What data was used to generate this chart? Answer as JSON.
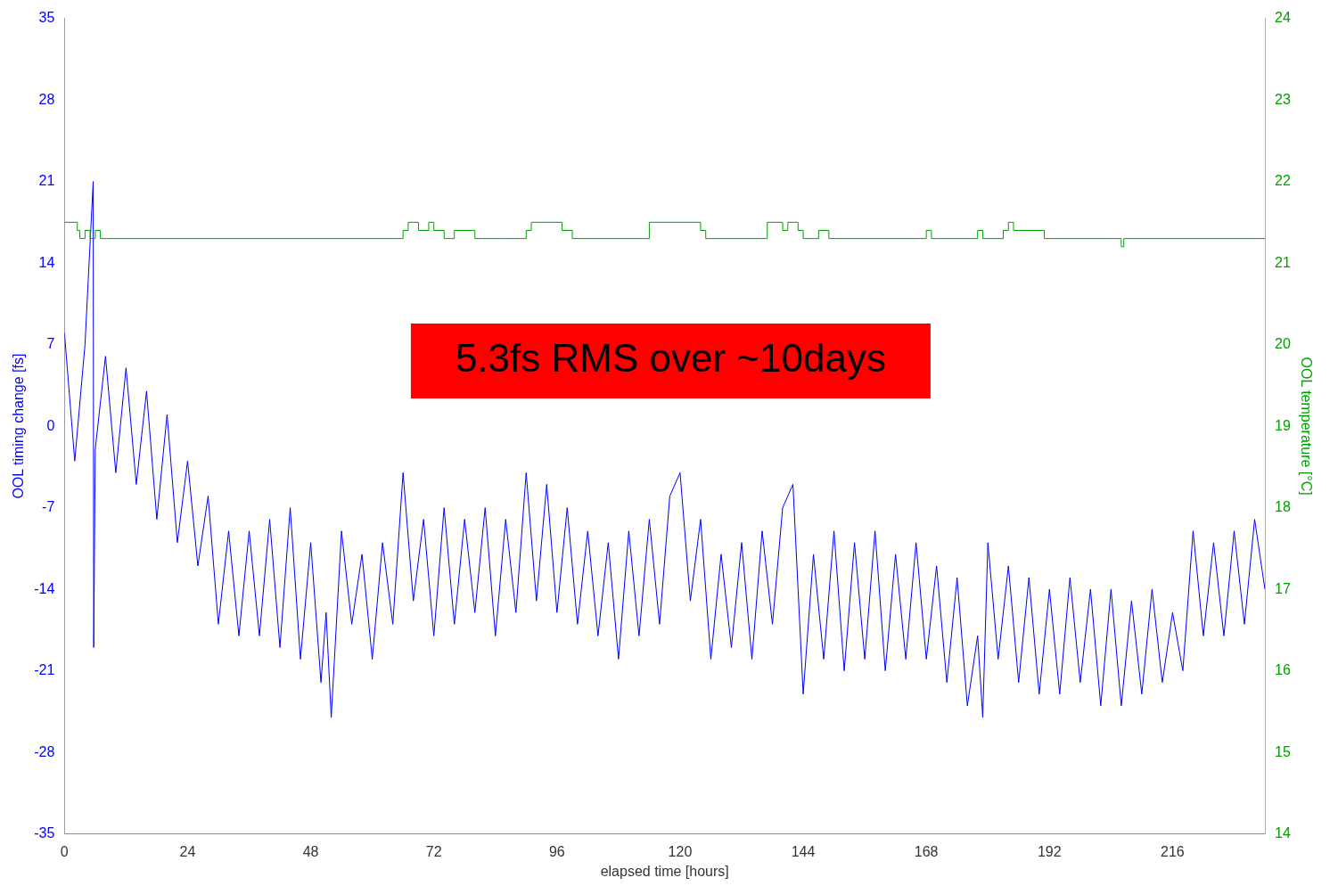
{
  "chart_data": {
    "type": "line",
    "xlabel": "elapsed time [hours]",
    "ylabel": "OOL timing change [fs]",
    "y2label": "OOL temperature [°C]",
    "annotations": [
      "5.3fs RMS over ~10days"
    ],
    "xlim": [
      0,
      234
    ],
    "xticks": [
      0,
      24,
      48,
      72,
      96,
      120,
      144,
      168,
      192,
      216
    ],
    "ylim": [
      -35,
      35
    ],
    "yticks": [
      -35,
      -28,
      -21,
      -14,
      -7,
      0,
      7,
      14,
      21,
      28,
      35
    ],
    "y2lim": [
      14,
      24
    ],
    "y2ticks": [
      14,
      15,
      16,
      17,
      18,
      19,
      20,
      21,
      22,
      23,
      24
    ],
    "grid": false,
    "legend": false,
    "marker": "none",
    "series": [
      {
        "color": "#0000ff",
        "x": [
          0,
          2,
          4,
          5.6,
          5.7,
          6,
          8,
          10,
          12,
          14,
          16,
          18,
          20,
          22,
          24,
          26,
          28,
          30,
          32,
          34,
          36,
          38,
          40,
          42,
          44,
          46,
          48,
          50,
          51,
          52,
          54,
          56,
          58,
          60,
          62,
          64,
          66,
          68,
          70,
          72,
          74,
          76,
          78,
          80,
          82,
          84,
          86,
          88,
          90,
          92,
          94,
          96,
          98,
          100,
          102,
          104,
          106,
          108,
          110,
          112,
          114,
          116,
          118,
          120,
          122,
          124,
          126,
          128,
          130,
          132,
          134,
          136,
          138,
          140,
          142,
          143,
          144,
          146,
          148,
          150,
          152,
          154,
          156,
          158,
          160,
          162,
          164,
          166,
          168,
          170,
          172,
          174,
          176,
          178,
          179,
          180,
          182,
          184,
          186,
          188,
          190,
          192,
          194,
          196,
          198,
          200,
          202,
          204,
          206,
          208,
          210,
          212,
          214,
          216,
          218,
          220,
          222,
          224,
          226,
          228,
          230,
          232,
          234
        ],
        "values": [
          8,
          -3,
          7,
          21,
          -19,
          -2,
          6,
          -4,
          5,
          -5,
          3,
          -8,
          1,
          -10,
          -3,
          -12,
          -6,
          -17,
          -9,
          -18,
          -9,
          -18,
          -8,
          -19,
          -7,
          -20,
          -10,
          -22,
          -16,
          -25,
          -9,
          -17,
          -11,
          -20,
          -10,
          -17,
          -4,
          -15,
          -8,
          -18,
          -7,
          -17,
          -8,
          -16,
          -7,
          -18,
          -8,
          -16,
          -4,
          -15,
          -5,
          -16,
          -7,
          -17,
          -9,
          -18,
          -10,
          -20,
          -9,
          -18,
          -8,
          -17,
          -6,
          -4,
          -15,
          -8,
          -20,
          -11,
          -19,
          -10,
          -20,
          -9,
          -17,
          -7,
          -5,
          -14,
          -23,
          -11,
          -20,
          -9,
          -21,
          -10,
          -20,
          -9,
          -21,
          -11,
          -20,
          -10,
          -20,
          -12,
          -22,
          -13,
          -24,
          -18,
          -25,
          -10,
          -20,
          -12,
          -22,
          -13,
          -23,
          -14,
          -23,
          -13,
          -22,
          -14,
          -24,
          -14,
          -24,
          -15,
          -23,
          -14,
          -22,
          -16,
          -21,
          -9,
          -18,
          -10,
          -18,
          -9,
          -17,
          -8,
          -14
        ]
      },
      {
        "type": "step",
        "axis": "y2",
        "color": "#00a000",
        "x": [
          0,
          2.5,
          3,
          4,
          5,
          6,
          7,
          8,
          66,
          67,
          69,
          71,
          72,
          74,
          76,
          80,
          85,
          90,
          91,
          97,
          99,
          114,
          124,
          125,
          137,
          140,
          141,
          143,
          144,
          147,
          149,
          168,
          169,
          170,
          178,
          179,
          183,
          184,
          185,
          191,
          206,
          206.5,
          234
        ],
        "values": [
          21.5,
          21.4,
          21.3,
          21.4,
          21.3,
          21.4,
          21.3,
          21.3,
          21.4,
          21.5,
          21.4,
          21.5,
          21.4,
          21.3,
          21.4,
          21.3,
          21.3,
          21.4,
          21.5,
          21.4,
          21.3,
          21.5,
          21.4,
          21.3,
          21.5,
          21.4,
          21.5,
          21.4,
          21.3,
          21.4,
          21.3,
          21.4,
          21.3,
          21.3,
          21.4,
          21.3,
          21.4,
          21.5,
          21.4,
          21.3,
          21.2,
          21.3,
          21.3
        ]
      }
    ]
  }
}
